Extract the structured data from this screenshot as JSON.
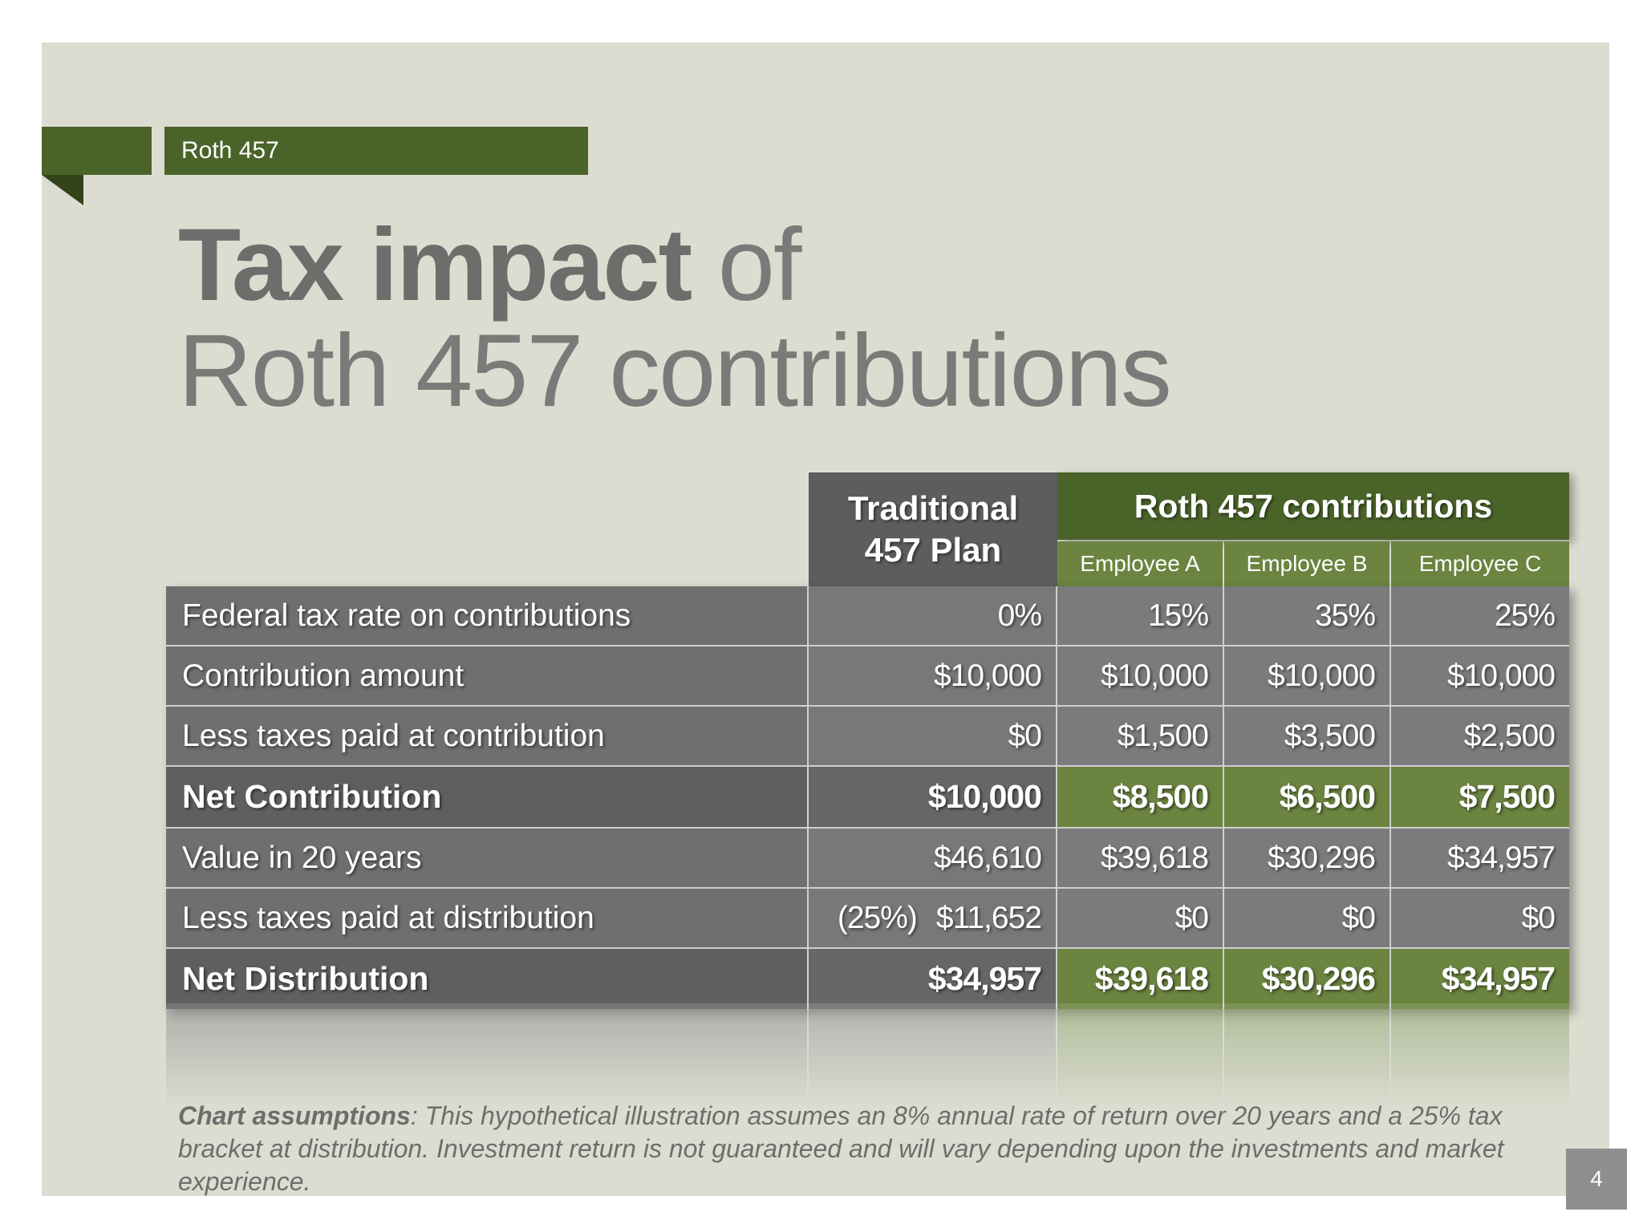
{
  "header": {
    "section": "Roth 457"
  },
  "title": {
    "strong": "Tax impact",
    "connector": " of",
    "line2": "Roth 457 contributions"
  },
  "table": {
    "traditional_header": [
      "Traditional",
      "457 Plan"
    ],
    "roth_header": "Roth 457 contributions",
    "employees": [
      "Employee A",
      "Employee B",
      "Employee C"
    ],
    "rows": [
      {
        "label": "Federal tax rate on contributions",
        "bold": false,
        "traditional": "0%",
        "a": "15%",
        "b": "35%",
        "c": "25%"
      },
      {
        "label": "Contribution amount",
        "bold": false,
        "traditional": "$10,000",
        "a": "$10,000",
        "b": "$10,000",
        "c": "$10,000"
      },
      {
        "label": "Less taxes paid at contribution",
        "bold": false,
        "traditional": "$0",
        "a": "$1,500",
        "b": "$3,500",
        "c": "$2,500"
      },
      {
        "label": "Net Contribution",
        "bold": true,
        "traditional": "$10,000",
        "a": "$8,500",
        "b": "$6,500",
        "c": "$7,500"
      },
      {
        "label": "Value in 20 years",
        "bold": false,
        "traditional": "$46,610",
        "a": "$39,618",
        "b": "$30,296",
        "c": "$34,957"
      },
      {
        "label": "Less taxes paid at distribution",
        "bold": false,
        "traditional_rate": "(25%)",
        "traditional": "$11,652",
        "a": "$0",
        "b": "$0",
        "c": "$0"
      },
      {
        "label": "Net Distribution",
        "bold": true,
        "traditional": "$34,957",
        "a": "$39,618",
        "b": "$30,296",
        "c": "$34,957"
      }
    ]
  },
  "notes": {
    "label": "Chart assumptions",
    "text": ": This hypothetical illustration assumes an 8% annual rate of return over 20 years and a 25% tax bracket at distribution. Investment return is not guaranteed and will vary depending upon the investments and market experience."
  },
  "page_number": "4",
  "colors": {
    "slide_bg": "#dcddd1",
    "green": "#4a6329",
    "green_light": "#6b8440",
    "gray_dark": "#5d5d5f",
    "gray": "#78787a",
    "title": "#7a7a79"
  }
}
